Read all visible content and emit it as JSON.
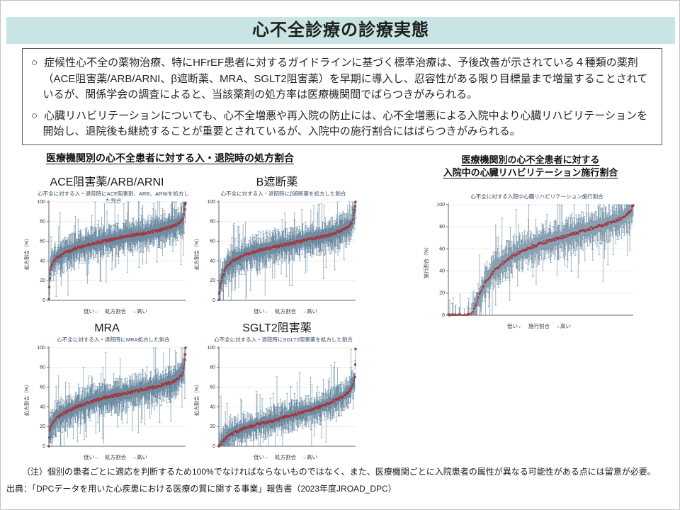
{
  "slide_title": "心不全診療の診療実態",
  "summary_box": {
    "bullets": [
      {
        "marker": "○",
        "text": "症候性心不全の薬物治療、特にHFrEF患者に対するガイドラインに基づく標準治療は、予後改善が示されている４種類の薬剤（ACE阻害薬/ARB/ARNI、β遮断薬、MRA、SGLT2阻害薬）を早期に導入し、忍容性がある限り目標量まで増量することされているが、関係学会の調査によると、当該薬剤の処方率は医療機関間でばらつきがみられる。"
      },
      {
        "marker": "○",
        "text": "心臓リハビリテーションについても、心不全増悪や再入院の防止には、心不全増悪による入院中より心臓リハビリテーションを開始し、退院後も継続することが重要とされているが、入院中の施行割合にはばらつきがみられる。"
      }
    ]
  },
  "left_section": {
    "header": "医療機関別の心不全患者に対する入・退院時の処方割合"
  },
  "right_section": {
    "header_line1": "医療機関別の心不全患者に対する",
    "header_line2": "入院中の心臓リハビリテーション施行割合"
  },
  "notes": {
    "note": "（注）個別の患者ごとに適応を判断するため100%でなければならないものではなく、また、医療機関ごとに入院患者の属性が異なる可能性がある点には留意が必要。",
    "source": "出典：「DPCデータを用いた心疾患における医療の質に関する事業」報告書（2023年度JROAD_DPC）"
  },
  "colors": {
    "title_bar_bg": "#c9e4e4",
    "interval_blue": "#1f4e6e",
    "interval_cap": "#7da0be",
    "point_red": "#a23840",
    "gridline": "#ececec"
  },
  "chart_data": [
    {
      "id": "ace-arb-arni",
      "type": "scatter",
      "style": "caterpillar-interval-plot",
      "panel_label": "ACE阻害薬/ARB/ARNI",
      "title": "心不全に対する入・退院時にACE阻害剤、ARB、ARNIを処方した割合",
      "xlabel": "低い←　処方割合　→高い",
      "ylabel": "処方割合（%）",
      "ylim": [
        0,
        100
      ],
      "yticks": [
        0,
        20,
        40,
        60,
        80,
        100
      ],
      "grid": true,
      "legend": false,
      "median_curve": {
        "fractions": [
          0,
          0.004,
          0.008,
          0.012,
          0.02,
          0.05,
          0.1,
          0.2,
          0.3,
          0.4,
          0.5,
          0.6,
          0.7,
          0.8,
          0.9,
          0.95,
          0.98,
          0.995,
          1.0
        ],
        "values": [
          0,
          20,
          27,
          33,
          36,
          42,
          47,
          53,
          57,
          60,
          63,
          66,
          68,
          71,
          75,
          78,
          82,
          93,
          100
        ]
      },
      "interval_halfwidth_typical": [
        5,
        18
      ]
    },
    {
      "id": "beta-blocker",
      "type": "scatter",
      "style": "caterpillar-interval-plot",
      "panel_label": "B遮断薬",
      "title": "心不全に対する入・退院時にβ遮断薬を処方した割合",
      "xlabel": "低い←　処方割合　→高い",
      "ylabel": "処方割合（%）",
      "ylim": [
        0,
        100
      ],
      "yticks": [
        0,
        20,
        40,
        60,
        80,
        100
      ],
      "grid": true,
      "legend": false,
      "median_curve": {
        "fractions": [
          0,
          0.004,
          0.01,
          0.02,
          0.05,
          0.1,
          0.2,
          0.3,
          0.4,
          0.5,
          0.6,
          0.7,
          0.8,
          0.9,
          0.95,
          0.98,
          0.995,
          1.0
        ],
        "values": [
          0,
          8,
          15,
          22,
          33,
          40,
          47,
          51,
          54,
          57,
          60,
          63,
          66,
          71,
          75,
          80,
          92,
          100
        ]
      },
      "interval_halfwidth_typical": [
        5,
        18
      ]
    },
    {
      "id": "mra",
      "type": "scatter",
      "style": "caterpillar-interval-plot",
      "panel_label": "MRA",
      "title": "心不全に対する入・退院時にMRA処方した割合",
      "xlabel": "低い←　処方割合　→高い",
      "ylabel": "処方割合（%）",
      "ylim": [
        0,
        100
      ],
      "yticks": [
        0,
        20,
        40,
        60,
        80,
        100
      ],
      "grid": true,
      "legend": false,
      "median_curve": {
        "fractions": [
          0,
          0.004,
          0.01,
          0.02,
          0.05,
          0.1,
          0.2,
          0.3,
          0.4,
          0.5,
          0.6,
          0.7,
          0.8,
          0.9,
          0.95,
          0.98,
          0.995,
          1.0
        ],
        "values": [
          0,
          14,
          19,
          22,
          28,
          33,
          40,
          45,
          49,
          52,
          55,
          58,
          61,
          65,
          69,
          74,
          88,
          100
        ]
      },
      "interval_halfwidth_typical": [
        5,
        18
      ]
    },
    {
      "id": "sglt2",
      "type": "scatter",
      "style": "caterpillar-interval-plot",
      "panel_label": "SGLT2阻害薬",
      "title": "心不全に対する入・退院時にSGLT2阻害薬を処方した割合",
      "xlabel": "低い←　処方割合　→高い",
      "ylabel": "処方割合（%）",
      "ylim": [
        0,
        100
      ],
      "yticks": [
        0,
        20,
        40,
        60,
        80,
        100
      ],
      "grid": true,
      "legend": false,
      "median_curve": {
        "fractions": [
          0,
          0.01,
          0.03,
          0.05,
          0.1,
          0.2,
          0.3,
          0.4,
          0.5,
          0.6,
          0.7,
          0.8,
          0.9,
          0.95,
          0.98,
          0.995,
          1.0
        ],
        "values": [
          0,
          2,
          5,
          8,
          13,
          19,
          23,
          26,
          30,
          34,
          38,
          43,
          50,
          55,
          62,
          70,
          100
        ]
      },
      "interval_halfwidth_typical": [
        4,
        16
      ]
    },
    {
      "id": "cardiac-rehab",
      "type": "scatter",
      "style": "caterpillar-interval-plot",
      "panel_label": null,
      "title": "心不全に対する入院中心臓リハビリテーション施行割合",
      "xlabel": "低い←　施行割合　→高い",
      "ylabel": "施行割合（%）",
      "ylim": [
        0,
        100
      ],
      "yticks": [
        0,
        20,
        40,
        60,
        80,
        100
      ],
      "grid": true,
      "legend": false,
      "median_curve": {
        "fractions": [
          0,
          0.12,
          0.13,
          0.15,
          0.17,
          0.2,
          0.25,
          0.3,
          0.35,
          0.4,
          0.5,
          0.6,
          0.7,
          0.8,
          0.9,
          0.95,
          0.99,
          1.0
        ],
        "values": [
          0,
          0,
          2,
          10,
          20,
          30,
          41,
          48,
          54,
          58,
          65,
          70,
          75,
          80,
          85,
          89,
          95,
          100
        ]
      },
      "interval_halfwidth_typical": [
        5,
        18
      ]
    }
  ]
}
